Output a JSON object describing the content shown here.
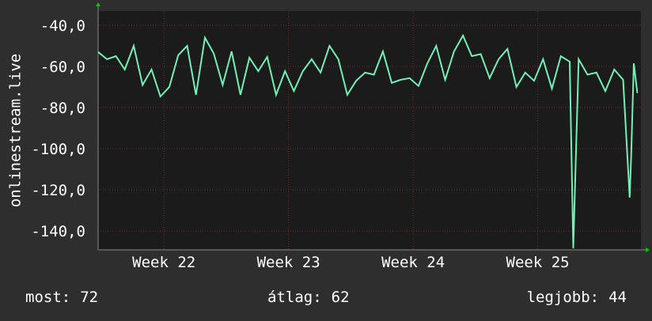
{
  "chart_data": {
    "type": "line",
    "y_label": "onlinestream.live",
    "x": [
      0,
      0.5,
      1,
      1.5,
      2,
      2.5,
      3,
      3.5,
      4,
      4.5,
      5,
      5.5,
      6,
      6.5,
      7,
      7.5,
      8,
      8.5,
      9,
      9.5,
      10,
      10.5,
      11,
      11.5,
      12,
      12.5,
      13,
      13.5,
      14,
      14.5,
      15,
      15.5,
      16,
      16.5,
      17,
      17.5,
      18,
      18.5,
      19,
      19.5,
      20,
      20.5,
      21,
      21.5,
      22,
      22.5,
      23,
      23.5,
      24,
      24.5,
      25,
      25.5,
      26,
      26.5,
      26.7,
      27,
      27.5,
      28,
      28.5,
      29,
      29.5,
      29.87,
      29.95,
      30.1,
      30.3
    ],
    "series": [
      {
        "name": "onlinestream.live",
        "color": "#72f0b6",
        "values": [
          -53,
          -56.5,
          -55,
          -61.5,
          -50,
          -69,
          -61.5,
          -74.6,
          -70,
          -54.6,
          -50,
          -73.8,
          -46,
          -53.8,
          -69,
          -52.7,
          -73.8,
          -55.8,
          -62.3,
          -55.4,
          -73.8,
          -62.3,
          -72,
          -62.3,
          -56.5,
          -63,
          -50,
          -56.5,
          -73.8,
          -67,
          -63,
          -64,
          -52.7,
          -68,
          -66.5,
          -65.7,
          -69.5,
          -58.5,
          -50,
          -66.5,
          -52.7,
          -45,
          -55,
          -54,
          -65.7,
          -56.5,
          -51.5,
          -70,
          -63,
          -67,
          -56.5,
          -70.8,
          -55,
          -57.7,
          -148.5,
          -56.5,
          -64,
          -63,
          -72,
          -61.5,
          -66.5,
          -123.8,
          -104.6,
          -58.5,
          -73
        ]
      }
    ],
    "xlim": [
      0,
      30.5
    ],
    "ylim": [
      -149.2,
      -33.1
    ],
    "xticks": [
      {
        "value": 3.7,
        "label": "Week 22"
      },
      {
        "value": 10.7,
        "label": "Week 23"
      },
      {
        "value": 17.7,
        "label": "Week 24"
      },
      {
        "value": 24.7,
        "label": "Week 25"
      }
    ],
    "yticks": [
      {
        "value": -40,
        "label": "-40,0"
      },
      {
        "value": -60,
        "label": "-60,0"
      },
      {
        "value": -80,
        "label": "-80,0"
      },
      {
        "value": -100,
        "label": "-100,0"
      },
      {
        "value": -120,
        "label": "-120,0"
      },
      {
        "value": -140,
        "label": "-140,0"
      }
    ],
    "grid": true,
    "summary": [
      {
        "label": "most:",
        "value": 72
      },
      {
        "label": "átlag:",
        "value": 62
      },
      {
        "label": "legjobb:",
        "value": 44
      }
    ]
  }
}
